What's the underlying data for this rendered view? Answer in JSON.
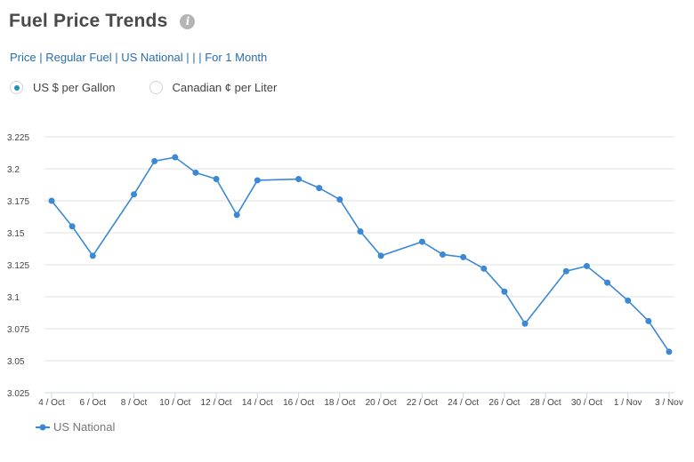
{
  "header": {
    "title": "Fuel Price Trends",
    "info_icon": "info-icon"
  },
  "breadcrumb": "Price | Regular Fuel | US National | | | For 1 Month",
  "units": {
    "options": [
      {
        "label": "US $ per Gallon",
        "checked": true
      },
      {
        "label": "Canadian ¢ per Liter",
        "checked": false
      }
    ]
  },
  "colors": {
    "series": "#3a88d6",
    "grid": "#e2e2e2",
    "axis": "#ccd6eb",
    "radio_selected": "#1f8fc4"
  },
  "chart_data": {
    "type": "line",
    "ylim": [
      3.025,
      3.225
    ],
    "yticks": [
      "3.025",
      "3.05",
      "3.075",
      "3.1",
      "3.125",
      "3.15",
      "3.175",
      "3.2",
      "3.225"
    ],
    "xticks": [
      "4 / Oct",
      "6 / Oct",
      "8 / Oct",
      "10 / Oct",
      "12 / Oct",
      "14 / Oct",
      "16 / Oct",
      "18 / Oct",
      "20 / Oct",
      "22 / Oct",
      "24 / Oct",
      "26 / Oct",
      "28 / Oct",
      "30 / Oct",
      "1 / Nov",
      "3 / Nov"
    ],
    "xlim": [
      "4 / Oct",
      "3 / Nov"
    ],
    "grid": true,
    "legend_position": "bottom-left",
    "series": [
      {
        "name": "US National",
        "points": [
          {
            "x": "4 / Oct",
            "y": 3.175
          },
          {
            "x": "5 / Oct",
            "y": 3.155
          },
          {
            "x": "6 / Oct",
            "y": 3.132
          },
          {
            "x": "8 / Oct",
            "y": 3.18
          },
          {
            "x": "9 / Oct",
            "y": 3.206
          },
          {
            "x": "10 / Oct",
            "y": 3.209
          },
          {
            "x": "11 / Oct",
            "y": 3.197
          },
          {
            "x": "12 / Oct",
            "y": 3.192
          },
          {
            "x": "13 / Oct",
            "y": 3.164
          },
          {
            "x": "14 / Oct",
            "y": 3.191
          },
          {
            "x": "16 / Oct",
            "y": 3.192
          },
          {
            "x": "17 / Oct",
            "y": 3.185
          },
          {
            "x": "18 / Oct",
            "y": 3.176
          },
          {
            "x": "19 / Oct",
            "y": 3.151
          },
          {
            "x": "20 / Oct",
            "y": 3.132
          },
          {
            "x": "22 / Oct",
            "y": 3.143
          },
          {
            "x": "23 / Oct",
            "y": 3.133
          },
          {
            "x": "24 / Oct",
            "y": 3.131
          },
          {
            "x": "25 / Oct",
            "y": 3.122
          },
          {
            "x": "26 / Oct",
            "y": 3.104
          },
          {
            "x": "27 / Oct",
            "y": 3.079
          },
          {
            "x": "29 / Oct",
            "y": 3.12
          },
          {
            "x": "30 / Oct",
            "y": 3.124
          },
          {
            "x": "31 / Oct",
            "y": 3.111
          },
          {
            "x": "1 / Nov",
            "y": 3.097
          },
          {
            "x": "2 / Nov",
            "y": 3.081
          },
          {
            "x": "3 / Nov",
            "y": 3.057
          }
        ]
      }
    ]
  }
}
